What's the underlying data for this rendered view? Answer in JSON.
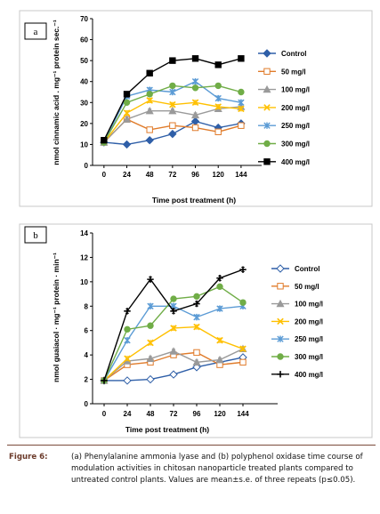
{
  "chart_data": [
    {
      "panel": "a",
      "type": "line",
      "xlabel": "Time post treatment (h)",
      "ylabel": "nmol cinnamic acid . mg⁻¹ protein sec.⁻¹",
      "categories": [
        "0",
        "24",
        "48",
        "72",
        "96",
        "120",
        "144"
      ],
      "ylim": [
        0,
        70
      ],
      "yticks": [
        0,
        10,
        20,
        30,
        40,
        50,
        60,
        70
      ],
      "grid": false,
      "legend_position": "right",
      "series": [
        {
          "name": "Control",
          "color": "#2f5fa8",
          "marker": "diamond",
          "values": [
            11,
            10,
            12,
            15,
            21,
            18,
            20
          ]
        },
        {
          "name": "50 mg/l",
          "color": "#e07b2a",
          "marker": "square-open",
          "values": [
            11,
            22,
            17,
            19,
            18,
            16,
            19
          ]
        },
        {
          "name": "100 mg/l",
          "color": "#9a9a9a",
          "marker": "triangle",
          "values": [
            11,
            22,
            26,
            26,
            24,
            27,
            28
          ]
        },
        {
          "name": "200 mg/l",
          "color": "#ffc000",
          "marker": "x",
          "values": [
            11,
            25,
            31,
            29,
            30,
            28,
            27
          ]
        },
        {
          "name": "250 mg/l",
          "color": "#5b9bd5",
          "marker": "star",
          "values": [
            11,
            33,
            36,
            35,
            40,
            32,
            30
          ]
        },
        {
          "name": "300 mg/l",
          "color": "#70ad47",
          "marker": "circle",
          "values": [
            11,
            30,
            34,
            38,
            37,
            38,
            35
          ]
        },
        {
          "name": "400 mg/l",
          "color": "#000000",
          "marker": "square",
          "values": [
            12,
            34,
            44,
            50,
            51,
            48,
            51
          ]
        }
      ]
    },
    {
      "panel": "b",
      "type": "line",
      "xlabel": "Time post treatment (h)",
      "ylabel": "nmol guaiacol · mg⁻¹ protein · min⁻¹",
      "categories": [
        "0",
        "24",
        "48",
        "72",
        "96",
        "120",
        "144"
      ],
      "ylim": [
        0,
        14
      ],
      "yticks": [
        0,
        2,
        4,
        6,
        8,
        10,
        12,
        14
      ],
      "grid": false,
      "legend_position": "right",
      "series": [
        {
          "name": "Control",
          "color": "#2f5fa8",
          "marker": "diamond-open",
          "values": [
            1.9,
            1.9,
            2.0,
            2.4,
            3.0,
            3.4,
            3.8
          ]
        },
        {
          "name": "50 mg/l",
          "color": "#e07b2a",
          "marker": "square-open",
          "values": [
            1.9,
            3.2,
            3.4,
            4.0,
            4.2,
            3.2,
            3.4
          ]
        },
        {
          "name": "100 mg/l",
          "color": "#9a9a9a",
          "marker": "triangle",
          "values": [
            1.9,
            3.5,
            3.7,
            4.3,
            3.4,
            3.6,
            4.5
          ]
        },
        {
          "name": "200 mg/l",
          "color": "#ffc000",
          "marker": "x",
          "values": [
            1.9,
            3.7,
            5.0,
            6.2,
            6.3,
            5.2,
            4.5
          ]
        },
        {
          "name": "250 mg/l",
          "color": "#5b9bd5",
          "marker": "star",
          "values": [
            1.9,
            5.2,
            8.0,
            8.0,
            7.1,
            7.8,
            8.0
          ]
        },
        {
          "name": "300 mg/l",
          "color": "#70ad47",
          "marker": "circle",
          "values": [
            1.9,
            6.1,
            6.4,
            8.6,
            8.8,
            9.6,
            8.3
          ]
        },
        {
          "name": "400 mg/l",
          "color": "#000000",
          "marker": "plus",
          "values": [
            1.9,
            7.6,
            10.2,
            7.6,
            8.2,
            10.3,
            11.0
          ]
        }
      ]
    }
  ],
  "caption": {
    "label": "Figure 6:",
    "text": "(a) Phenylalanine ammonia lyase and (b) polyphenol oxidase time course of modulation activities in chitosan nanoparticle treated plants compared to untreated control plants. Values are mean±s.e. of three repeats (p≤0.05)."
  }
}
